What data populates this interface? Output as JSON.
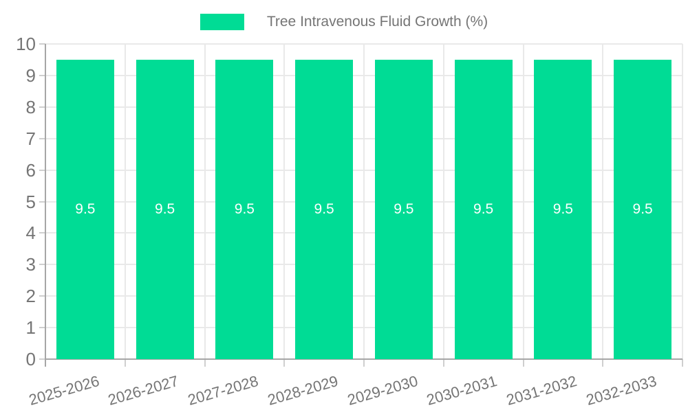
{
  "chart_data": {
    "type": "bar",
    "title": "Tree Intravenous Fluid Growth (%)",
    "legend": {
      "position": "top",
      "items": [
        {
          "label": "Tree Intravenous Fluid Growth (%)",
          "color": "#00DC95"
        }
      ]
    },
    "categories": [
      "2025-2026",
      "2026-2027",
      "2027-2028",
      "2028-2029",
      "2029-2030",
      "2030-2031",
      "2031-2032",
      "2032-2033"
    ],
    "series": [
      {
        "name": "Tree Intravenous Fluid Growth (%)",
        "values": [
          9.5,
          9.5,
          9.5,
          9.5,
          9.5,
          9.5,
          9.5,
          9.5
        ]
      }
    ],
    "bar_value_labels": [
      "9.5",
      "9.5",
      "9.5",
      "9.5",
      "9.5",
      "9.5",
      "9.5",
      "9.5"
    ],
    "xlabel": "",
    "ylabel": "",
    "ylim": [
      0,
      10
    ],
    "y_ticks": [
      0,
      1,
      2,
      3,
      4,
      5,
      6,
      7,
      8,
      9,
      10
    ],
    "grid": true,
    "colors": {
      "bar": "#00DC95",
      "grid_line": "#E9E9E9",
      "axis_line": "#A6A6A6",
      "tick_mark": "#CFCFCF",
      "tick_text": "#757575",
      "bar_value_text": "#FFFFFF"
    }
  }
}
